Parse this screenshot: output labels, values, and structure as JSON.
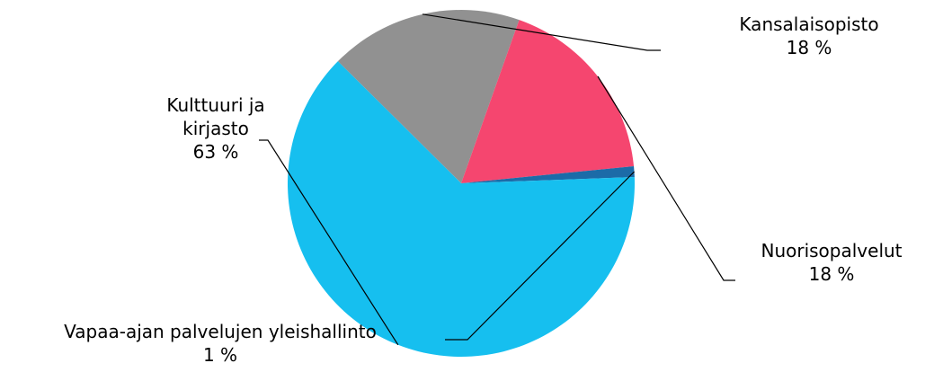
{
  "chart_data": {
    "type": "pie",
    "title": "",
    "slices": [
      {
        "label": "Kansalaisopisto",
        "value": 18,
        "value_label": "18 %",
        "color": "#919191"
      },
      {
        "label": "Nuorisopalvelut",
        "value": 18,
        "value_label": "18 %",
        "color": "#F5466F"
      },
      {
        "label": "Vapaa-ajan palvelujen yleishallinto",
        "value": 1,
        "value_label": "1 %",
        "color": "#1C6BA8"
      },
      {
        "label": "Kulttuuri ja kirjasto",
        "value": 63,
        "value_label": "63 %",
        "color": "#16BFEF"
      }
    ],
    "legend": "none",
    "labels": "outside with leader lines"
  }
}
